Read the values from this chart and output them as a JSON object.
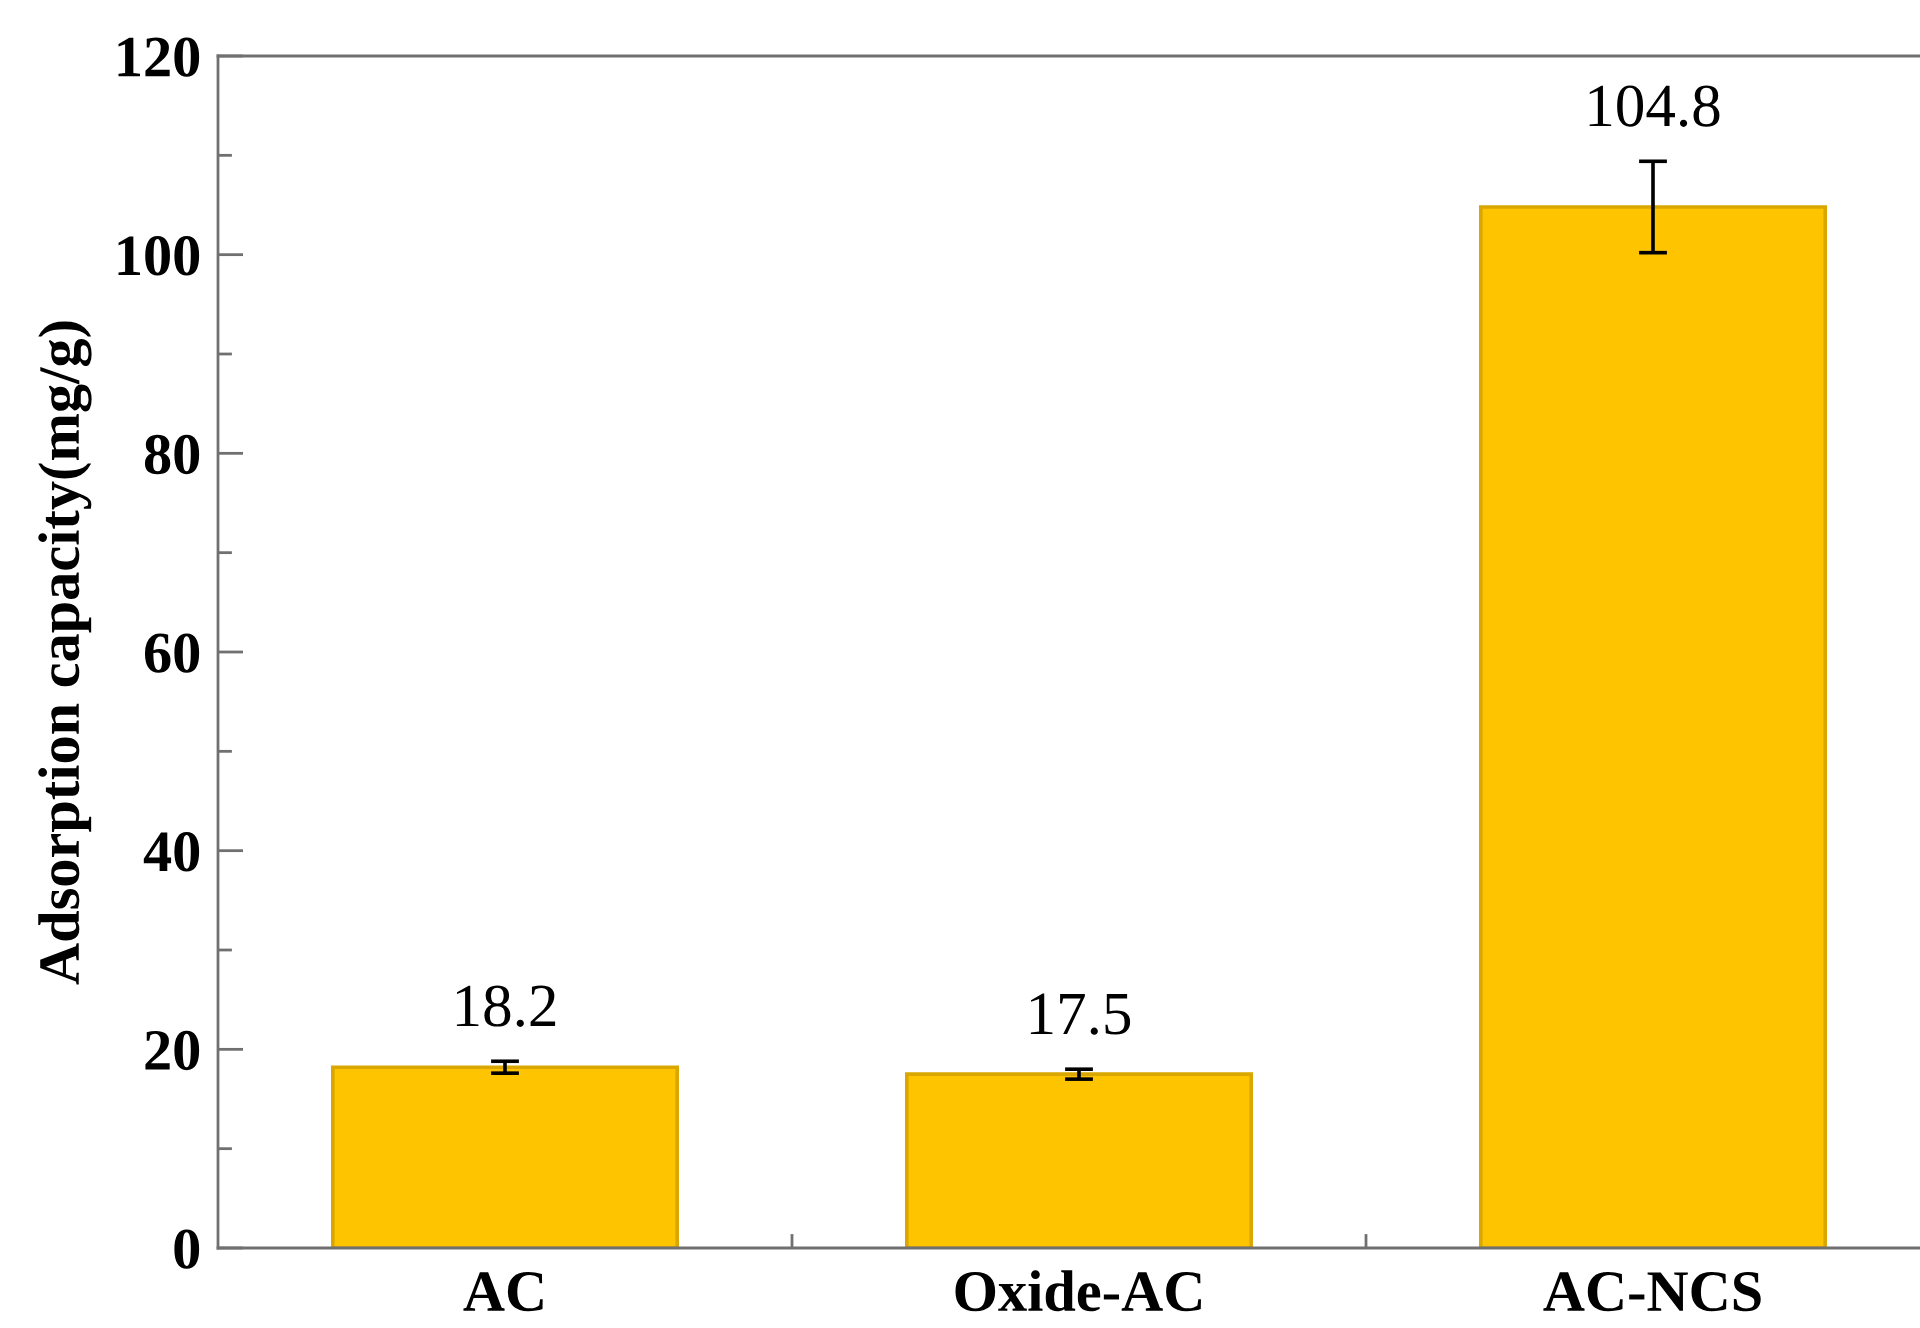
{
  "chart_data": {
    "type": "bar",
    "ylabel": "Adsorption capacity(mg/g)",
    "categories": [
      "AC",
      "Oxide-AC",
      "AC-NCS"
    ],
    "values": [
      18.2,
      17.5,
      104.8
    ],
    "errors": [
      0.6,
      0.5,
      4.6
    ],
    "color": "#ffc400",
    "ylim": [
      0,
      120
    ],
    "yticks": [
      0,
      20,
      40,
      60,
      80,
      100,
      120
    ],
    "data_labels": true,
    "grid": false
  }
}
